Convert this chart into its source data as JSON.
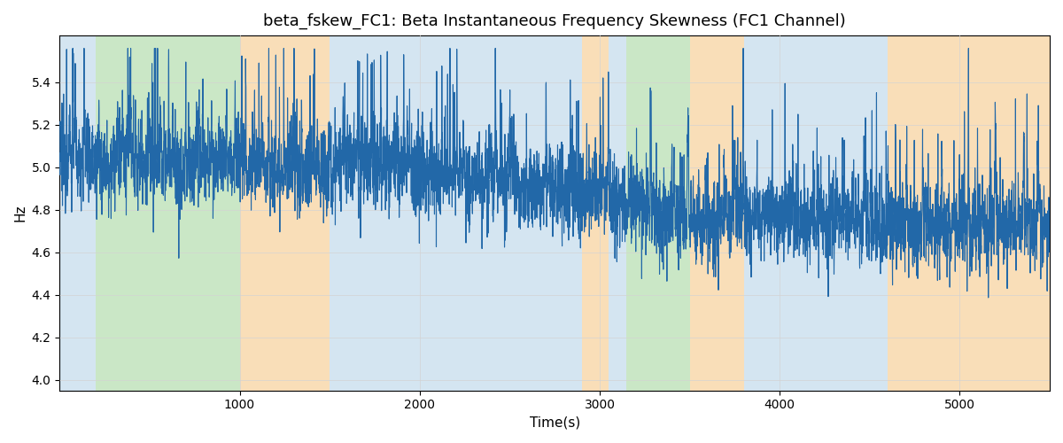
{
  "title": "beta_fskew_FC1: Beta Instantaneous Frequency Skewness (FC1 Channel)",
  "xlabel": "Time(s)",
  "ylabel": "Hz",
  "ylim": [
    3.95,
    5.62
  ],
  "xlim": [
    0,
    5500
  ],
  "line_color": "#2268a8",
  "line_width": 0.8,
  "bg_bands": [
    {
      "xmin": 0,
      "xmax": 200,
      "color": "#b8d4e8",
      "alpha": 0.6
    },
    {
      "xmin": 200,
      "xmax": 1000,
      "color": "#a8d8a0",
      "alpha": 0.6
    },
    {
      "xmin": 1000,
      "xmax": 1500,
      "color": "#f5c98a",
      "alpha": 0.6
    },
    {
      "xmin": 1500,
      "xmax": 2900,
      "color": "#b8d4e8",
      "alpha": 0.6
    },
    {
      "xmin": 2900,
      "xmax": 3050,
      "color": "#f5c98a",
      "alpha": 0.6
    },
    {
      "xmin": 3050,
      "xmax": 3150,
      "color": "#b8d4e8",
      "alpha": 0.6
    },
    {
      "xmin": 3150,
      "xmax": 3500,
      "color": "#a8d8a0",
      "alpha": 0.6
    },
    {
      "xmin": 3500,
      "xmax": 3800,
      "color": "#f5c98a",
      "alpha": 0.6
    },
    {
      "xmin": 3800,
      "xmax": 4600,
      "color": "#b8d4e8",
      "alpha": 0.6
    },
    {
      "xmin": 4600,
      "xmax": 5500,
      "color": "#f5c98a",
      "alpha": 0.6
    }
  ],
  "seed": 12345,
  "n_points": 5500,
  "title_fontsize": 13,
  "label_fontsize": 11,
  "tick_fontsize": 10,
  "xticks": [
    1000,
    2000,
    3000,
    4000,
    5000
  ],
  "yticks": [
    4.0,
    4.2,
    4.4,
    4.6,
    4.8,
    5.0,
    5.2,
    5.4
  ]
}
